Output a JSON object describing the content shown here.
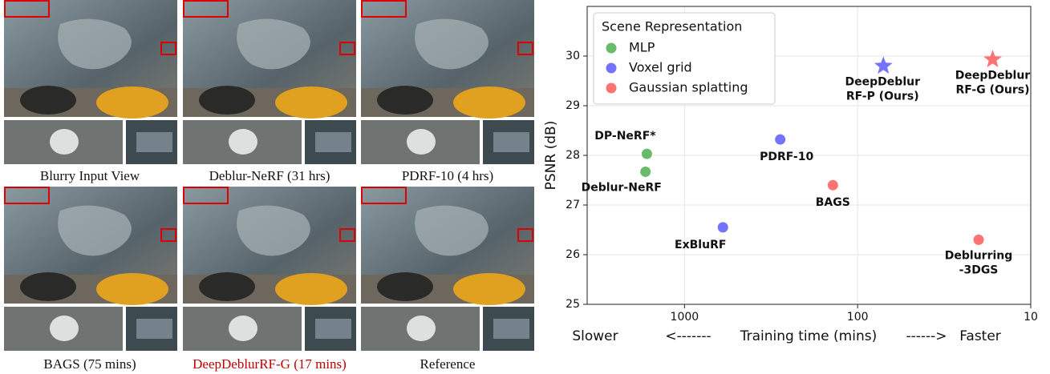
{
  "figure": {
    "captions": [
      "Blurry Input View",
      "Deblur-NeRF (31 hrs)",
      "PDRF-10 (4 hrs)",
      "BAGS (75 mins)",
      "DeepDeblurRF-G (17 mins)",
      "Reference"
    ]
  },
  "chart_data": {
    "type": "scatter",
    "ylabel": "PSNR (dB)",
    "xlabel": "Training time (mins)",
    "xlabel_left": "Slower",
    "xlabel_left_arrow": "<-------",
    "xlabel_right_arrow": "------>",
    "xlabel_right": "Faster",
    "xscale": "log",
    "xlim": [
      3650,
      10
    ],
    "xticks": [
      1000,
      100,
      10
    ],
    "ylim": [
      25,
      31
    ],
    "yticks": [
      25,
      26,
      27,
      28,
      29,
      30
    ],
    "grid": true,
    "legend_title": "Scene Representation",
    "legend": "upper left",
    "series": [
      {
        "name": "MLP",
        "color": "#4caf50",
        "markers": [
          "o",
          "o"
        ],
        "x": [
          1650,
          1680
        ],
        "values": [
          28.03,
          27.67
        ],
        "point_labels": [
          [
            "DP-NeRF*"
          ],
          [
            "Deblur-NeRF"
          ]
        ]
      },
      {
        "name": "Voxel grid",
        "color": "#5b5bff",
        "markers": [
          "o",
          "o",
          "*"
        ],
        "x": [
          600,
          280,
          71
        ],
        "values": [
          26.55,
          28.32,
          29.8
        ],
        "point_labels": [
          [
            "ExBluRF"
          ],
          [
            "PDRF-10"
          ],
          [
            "DeepDeblur",
            "RF-P (Ours)"
          ]
        ]
      },
      {
        "name": "Gaussian splatting",
        "color": "#ff5a5a",
        "markers": [
          "o",
          "o",
          "*"
        ],
        "x": [
          139,
          20,
          16.6
        ],
        "values": [
          27.4,
          26.3,
          29.93
        ],
        "point_labels": [
          [
            "BAGS"
          ],
          [
            "Deblurring",
            "-3DGS"
          ],
          [
            "DeepDeblur",
            "RF-G (Ours)"
          ]
        ]
      }
    ]
  }
}
